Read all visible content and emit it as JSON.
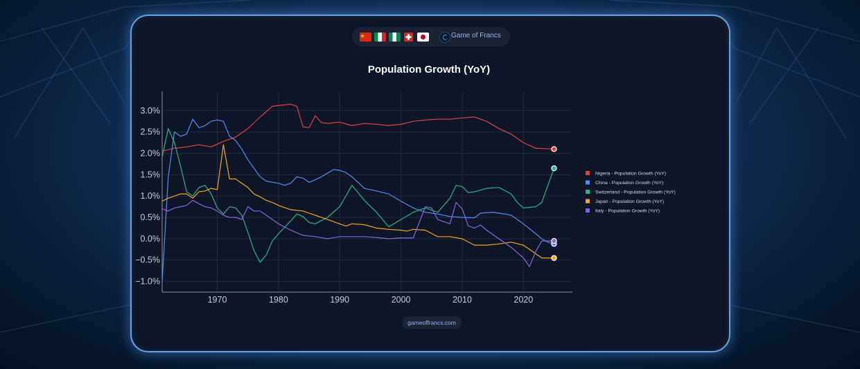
{
  "header": {
    "flags": [
      "china-flag",
      "italy-flag",
      "nigeria-flag",
      "switzerland-flag",
      "japan-flag"
    ],
    "brand_icon": "game-of-francs-logo-icon",
    "brand_name": "Game of Francs"
  },
  "footer": {
    "link_text": "gameoffrancs.com"
  },
  "colors": {
    "card_bg": "#0f1627",
    "card_border": "#6aa3e6",
    "grid": "#232c3d",
    "tick_text": "#c7cbd3"
  },
  "chart_data": {
    "type": "line",
    "title": "Population Growth (YoY)",
    "xlabel": "",
    "ylabel": "",
    "xlim": [
      1961,
      2028
    ],
    "ylim": [
      -1.25,
      3.45
    ],
    "xticks": [
      1970,
      1980,
      1990,
      2000,
      2010,
      2020
    ],
    "yticks": [
      {
        "value": 3.0,
        "label": "3.0%"
      },
      {
        "value": 2.5,
        "label": "2.5%"
      },
      {
        "value": 2.0,
        "label": "2.0%"
      },
      {
        "value": 1.5,
        "label": "1.5%"
      },
      {
        "value": 1.0,
        "label": "1.0%"
      },
      {
        "value": 0.5,
        "label": "0.5%"
      },
      {
        "value": 0.0,
        "label": "0.0%"
      },
      {
        "value": -0.5,
        "label": "−0.5%"
      },
      {
        "value": -1.0,
        "label": "−1.0%"
      }
    ],
    "grid": true,
    "legend_position": "right",
    "series": [
      {
        "name": "Nigeria - Population Growth (YoY)",
        "color": "#e0413f",
        "x": [
          1961,
          1963,
          1965,
          1967,
          1969,
          1971,
          1973,
          1975,
          1977,
          1979,
          1980,
          1982,
          1983,
          1984,
          1985,
          1986,
          1987,
          1988,
          1990,
          1992,
          1994,
          1996,
          1998,
          2000,
          2002,
          2004,
          2006,
          2008,
          2010,
          2012,
          2014,
          2016,
          2018,
          2020,
          2022,
          2025
        ],
        "y": [
          2.05,
          2.12,
          2.15,
          2.2,
          2.15,
          2.28,
          2.38,
          2.58,
          2.85,
          3.1,
          3.12,
          3.15,
          3.1,
          2.62,
          2.6,
          2.88,
          2.72,
          2.7,
          2.73,
          2.65,
          2.7,
          2.68,
          2.65,
          2.68,
          2.75,
          2.78,
          2.8,
          2.8,
          2.83,
          2.85,
          2.75,
          2.58,
          2.45,
          2.25,
          2.12,
          2.1
        ]
      },
      {
        "name": "China - Population Growth (YoY)",
        "color": "#4f8ef7",
        "x": [
          1961,
          1962,
          1963,
          1964,
          1965,
          1966,
          1967,
          1968,
          1969,
          1970,
          1971,
          1972,
          1973,
          1974,
          1975,
          1977,
          1978,
          1980,
          1981,
          1982,
          1983,
          1984,
          1985,
          1986,
          1987,
          1989,
          1990,
          1991,
          1992,
          1993,
          1994,
          1996,
          1998,
          2000,
          2002,
          2004,
          2006,
          2008,
          2010,
          2012,
          2013,
          2015,
          2017,
          2018,
          2020,
          2022,
          2023,
          2024,
          2025
        ],
        "y": [
          -1.0,
          1.45,
          2.5,
          2.4,
          2.45,
          2.8,
          2.6,
          2.65,
          2.75,
          2.78,
          2.75,
          2.4,
          2.3,
          2.1,
          1.85,
          1.45,
          1.35,
          1.3,
          1.25,
          1.3,
          1.45,
          1.42,
          1.32,
          1.38,
          1.45,
          1.62,
          1.6,
          1.55,
          1.45,
          1.32,
          1.18,
          1.12,
          1.05,
          0.88,
          0.72,
          0.62,
          0.58,
          0.52,
          0.5,
          0.49,
          0.6,
          0.62,
          0.58,
          0.55,
          0.35,
          0.12,
          0.0,
          -0.08,
          -0.12
        ]
      },
      {
        "name": "Switzerland - Population Growth (YoY)",
        "color": "#1fb987",
        "x": [
          1961,
          1962,
          1963,
          1964,
          1965,
          1966,
          1967,
          1968,
          1969,
          1970,
          1971,
          1972,
          1973,
          1974,
          1975,
          1976,
          1977,
          1978,
          1979,
          1980,
          1982,
          1983,
          1984,
          1985,
          1986,
          1988,
          1990,
          1992,
          1994,
          1996,
          1998,
          2000,
          2002,
          2004,
          2006,
          2008,
          2009,
          2010,
          2011,
          2012,
          2014,
          2016,
          2018,
          2019,
          2020,
          2022,
          2023,
          2025
        ],
        "y": [
          1.92,
          2.58,
          2.25,
          1.7,
          1.1,
          1.0,
          1.2,
          1.25,
          1.05,
          0.72,
          0.58,
          0.75,
          0.72,
          0.55,
          0.15,
          -0.28,
          -0.55,
          -0.38,
          -0.05,
          0.12,
          0.42,
          0.58,
          0.52,
          0.38,
          0.35,
          0.5,
          0.75,
          1.25,
          0.9,
          0.62,
          0.28,
          0.45,
          0.62,
          0.72,
          0.62,
          0.95,
          1.25,
          1.22,
          1.08,
          1.1,
          1.18,
          1.2,
          1.05,
          0.85,
          0.72,
          0.75,
          0.85,
          1.65
        ]
      },
      {
        "name": "Japan - Population Growth (YoY)",
        "color": "#f5a623",
        "x": [
          1961,
          1962,
          1963,
          1964,
          1965,
          1966,
          1967,
          1968,
          1969,
          1970,
          1971,
          1972,
          1973,
          1974,
          1975,
          1976,
          1977,
          1978,
          1979,
          1980,
          1982,
          1984,
          1986,
          1988,
          1990,
          1991,
          1992,
          1994,
          1996,
          1998,
          2000,
          2001,
          2002,
          2004,
          2006,
          2008,
          2010,
          2012,
          2014,
          2016,
          2018,
          2020,
          2022,
          2023,
          2025
        ],
        "y": [
          0.88,
          0.95,
          1.0,
          1.05,
          1.05,
          0.95,
          1.1,
          1.12,
          1.18,
          1.15,
          2.2,
          1.4,
          1.4,
          1.3,
          1.2,
          1.05,
          0.98,
          0.9,
          0.85,
          0.78,
          0.68,
          0.65,
          0.55,
          0.45,
          0.35,
          0.3,
          0.35,
          0.33,
          0.25,
          0.22,
          0.2,
          0.18,
          0.22,
          0.2,
          0.05,
          0.05,
          0.0,
          -0.15,
          -0.15,
          -0.12,
          -0.08,
          -0.15,
          -0.35,
          -0.45,
          -0.45
        ]
      },
      {
        "name": "Italy - Population Growth (YoY)",
        "color": "#8a63e8",
        "x": [
          1961,
          1962,
          1963,
          1964,
          1965,
          1966,
          1967,
          1968,
          1969,
          1970,
          1971,
          1972,
          1973,
          1974,
          1975,
          1976,
          1977,
          1978,
          1980,
          1982,
          1984,
          1986,
          1988,
          1990,
          1992,
          1994,
          1996,
          1998,
          2000,
          2002,
          2004,
          2005,
          2006,
          2007,
          2008,
          2009,
          2010,
          2011,
          2012,
          2013,
          2014,
          2016,
          2018,
          2020,
          2021,
          2022,
          2023,
          2025
        ],
        "y": [
          0.7,
          0.65,
          0.72,
          0.75,
          0.78,
          0.9,
          0.82,
          0.75,
          0.72,
          0.65,
          0.55,
          0.5,
          0.5,
          0.45,
          0.75,
          0.65,
          0.65,
          0.55,
          0.35,
          0.2,
          0.08,
          0.05,
          0.0,
          0.05,
          0.05,
          0.05,
          0.03,
          0.0,
          0.02,
          0.02,
          0.75,
          0.72,
          0.45,
          0.4,
          0.35,
          0.85,
          0.7,
          0.3,
          0.25,
          0.32,
          0.2,
          0.0,
          -0.2,
          -0.45,
          -0.65,
          -0.3,
          -0.05,
          -0.05
        ]
      }
    ]
  }
}
